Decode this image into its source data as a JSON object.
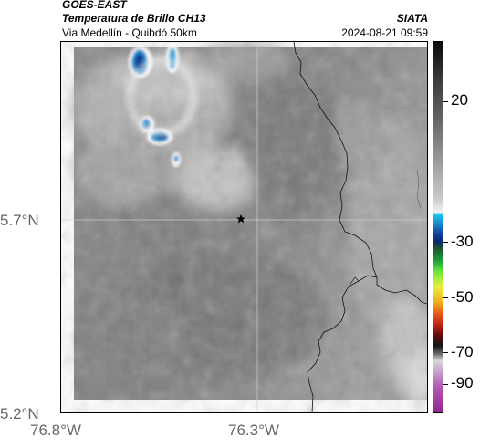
{
  "header": {
    "satellite": "GOES-EAST",
    "product": "Temperatura de Brillo CH13",
    "region": "Via Medellín - Quibdó 50km",
    "org": "SIATA",
    "timestamp": "2024-08-21 09:59"
  },
  "axes": {
    "lat_labels": [
      "5.7°N",
      "5.2°N"
    ],
    "lon_labels": [
      "76.8°W",
      "76.3°W"
    ]
  },
  "colorbar": {
    "tick_labels": [
      "20",
      "-30",
      "-50",
      "-70",
      "-90"
    ]
  },
  "marker": {
    "type": "star",
    "icon": "star-icon",
    "color": "#000000"
  }
}
